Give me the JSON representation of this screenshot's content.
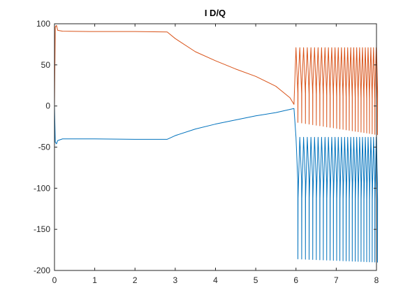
{
  "chart_data": {
    "type": "line",
    "title": "I D/Q",
    "xlabel": "",
    "ylabel": "",
    "xlim": [
      0,
      8
    ],
    "ylim": [
      -200,
      100
    ],
    "xticks": [
      0,
      1,
      2,
      3,
      4,
      5,
      6,
      7,
      8
    ],
    "yticks": [
      -200,
      -150,
      -100,
      -50,
      0,
      50,
      100
    ],
    "xtick_labels": [
      "0",
      "1",
      "2",
      "3",
      "4",
      "5",
      "6",
      "7",
      "8"
    ],
    "ytick_labels": [
      "-200",
      "-150",
      "-100",
      "-50",
      "0",
      "50",
      "100"
    ],
    "grid": false,
    "box": true,
    "series": [
      {
        "color": "#0072BD",
        "description": "I_D: initial spike to ~-45 then steady near -40 until t≈2.8, rises to ~-5 at t≈5.95, then oscillates between about -40 and -190 with increasing frequency",
        "values": [
          [
            0,
            0
          ],
          [
            0.02,
            -44
          ],
          [
            0.05,
            -46
          ],
          [
            0.08,
            -42
          ],
          [
            0.2,
            -40
          ],
          [
            1.0,
            -40
          ],
          [
            2.0,
            -40.5
          ],
          [
            2.8,
            -40.5
          ],
          [
            3.0,
            -36
          ],
          [
            3.5,
            -28
          ],
          [
            4.0,
            -22
          ],
          [
            4.5,
            -17
          ],
          [
            5.0,
            -12
          ],
          [
            5.5,
            -8
          ],
          [
            5.95,
            -3
          ]
        ],
        "oscillation": {
          "t_start": 6.0,
          "t_end": 8.0,
          "upper": -38,
          "lower_start": -186,
          "lower_end": -190
        }
      },
      {
        "color": "#D95319",
        "description": "I_Q: spikes to ~98 then steady near 91 until t≈2.8, decays toward ~0 at t≈5.95, then oscillates between about 70 and -35 with increasing frequency",
        "values": [
          [
            0,
            0
          ],
          [
            0.02,
            96
          ],
          [
            0.05,
            98
          ],
          [
            0.08,
            92
          ],
          [
            0.2,
            91
          ],
          [
            1.0,
            90.5
          ],
          [
            2.0,
            90.5
          ],
          [
            2.8,
            90
          ],
          [
            3.0,
            82
          ],
          [
            3.5,
            66
          ],
          [
            4.0,
            55
          ],
          [
            4.5,
            45
          ],
          [
            5.0,
            36
          ],
          [
            5.5,
            24
          ],
          [
            5.85,
            10
          ],
          [
            5.95,
            2
          ]
        ],
        "oscillation": {
          "t_start": 6.0,
          "t_end": 8.0,
          "upper": 71,
          "lower_start": -20,
          "lower_end": -35
        }
      }
    ]
  }
}
